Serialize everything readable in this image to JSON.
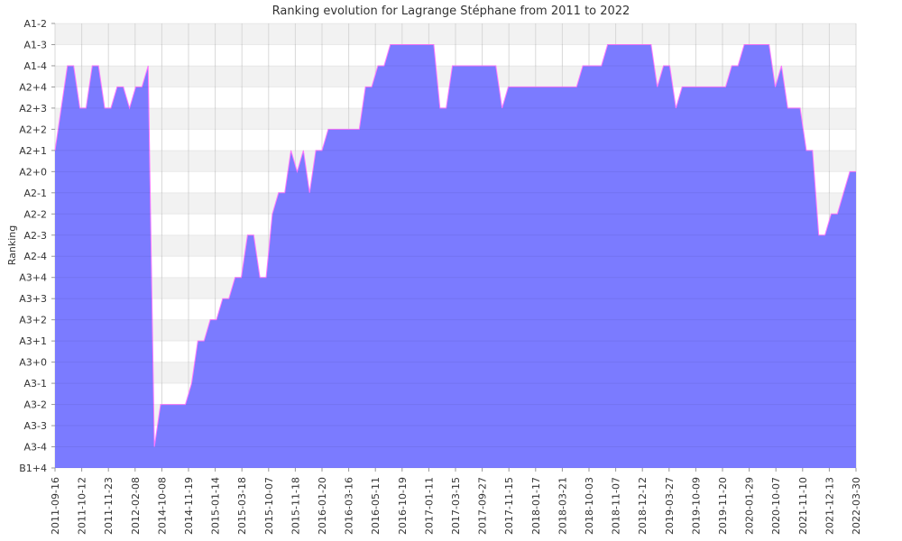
{
  "chart_data": {
    "type": "area",
    "title": "Ranking evolution for Lagrange Stéphane from 2011 to 2022",
    "xlabel": "",
    "ylabel": "Ranking",
    "grid": true,
    "legend": "none",
    "colors": {
      "area_fill": "#7b7bff",
      "line": "#ff77ff",
      "band_odd": "#f2f2f2",
      "band_even": "#ffffff",
      "grid": "#d8d8d8"
    },
    "y_categories": [
      "B1+4",
      "A3-4",
      "A3-3",
      "A3-2",
      "A3-1",
      "A3+0",
      "A3+1",
      "A3+2",
      "A3+3",
      "A3+4",
      "A2-4",
      "A2-3",
      "A2-2",
      "A2-1",
      "A2+0",
      "A2+1",
      "A2+2",
      "A2+3",
      "A2+4",
      "A1-4",
      "A1-3",
      "A1-2"
    ],
    "x_ticks": [
      "2011-09-16",
      "2011-10-12",
      "2011-11-23",
      "2012-02-08",
      "2014-10-08",
      "2014-11-19",
      "2015-01-14",
      "2015-03-18",
      "2015-10-07",
      "2015-11-18",
      "2016-01-20",
      "2016-03-16",
      "2016-05-11",
      "2016-10-19",
      "2017-01-11",
      "2017-03-15",
      "2017-09-27",
      "2017-11-15",
      "2018-01-17",
      "2018-03-21",
      "2018-10-03",
      "2018-11-07",
      "2018-12-12",
      "2019-03-27",
      "2019-10-09",
      "2019-11-20",
      "2020-01-29",
      "2020-10-07",
      "2021-11-10",
      "2021-12-13",
      "2022-03-30"
    ],
    "series": [
      {
        "values": [
          "A2+1",
          "A2+3",
          "A1-4",
          "A1-4",
          "A2+3",
          "A2+3",
          "A1-4",
          "A1-4",
          "A2+3",
          "A2+3",
          "A2+4",
          "A2+4",
          "A2+3",
          "A2+4",
          "A2+4",
          "A1-4",
          "A3-4",
          "A3-2",
          "A3-2",
          "A3-2",
          "A3-2",
          "A3-2",
          "A3-1",
          "A3+1",
          "A3+1",
          "A3+2",
          "A3+2",
          "A3+3",
          "A3+3",
          "A3+4",
          "A3+4",
          "A2-3",
          "A2-3",
          "A3+4",
          "A3+4",
          "A2-2",
          "A2-1",
          "A2-1",
          "A2+1",
          "A2+0",
          "A2+1",
          "A2-1",
          "A2+1",
          "A2+1",
          "A2+2",
          "A2+2",
          "A2+2",
          "A2+2",
          "A2+2",
          "A2+2",
          "A2+4",
          "A2+4",
          "A1-4",
          "A1-4",
          "A1-3",
          "A1-3",
          "A1-3",
          "A1-3",
          "A1-3",
          "A1-3",
          "A1-3",
          "A1-3",
          "A2+3",
          "A2+3",
          "A1-4",
          "A1-4",
          "A1-4",
          "A1-4",
          "A1-4",
          "A1-4",
          "A1-4",
          "A1-4",
          "A2+3",
          "A2+4",
          "A2+4",
          "A2+4",
          "A2+4",
          "A2+4",
          "A2+4",
          "A2+4",
          "A2+4",
          "A2+4",
          "A2+4",
          "A2+4",
          "A2+4",
          "A1-4",
          "A1-4",
          "A1-4",
          "A1-4",
          "A1-3",
          "A1-3",
          "A1-3",
          "A1-3",
          "A1-3",
          "A1-3",
          "A1-3",
          "A1-3",
          "A2+4",
          "A1-4",
          "A1-4",
          "A2+3",
          "A2+4",
          "A2+4",
          "A2+4",
          "A2+4",
          "A2+4",
          "A2+4",
          "A2+4",
          "A2+4",
          "A1-4",
          "A1-4",
          "A1-3",
          "A1-3",
          "A1-3",
          "A1-3",
          "A1-3",
          "A2+4",
          "A1-4",
          "A2+3",
          "A2+3",
          "A2+3",
          "A2+1",
          "A2+1",
          "A2-3",
          "A2-3",
          "A2-2",
          "A2-2",
          "A2-1",
          "A2+0",
          "A2+0"
        ]
      }
    ]
  }
}
